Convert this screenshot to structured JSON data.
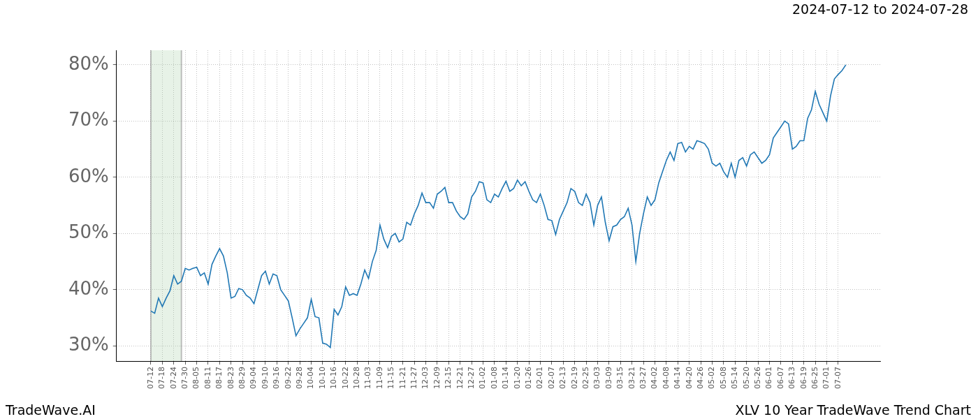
{
  "chart_data": {
    "type": "line",
    "title": "2024-07-12 to 2024-07-28",
    "footer_left": "TradeWave.AI",
    "footer_right": "XLV 10 Year TradeWave Trend Chart",
    "shaded_range": [
      "07-12",
      "07-28"
    ],
    "categories": [
      "07-12",
      null,
      null,
      "07-18",
      null,
      null,
      "07-24",
      null,
      null,
      "07-30",
      null,
      null,
      "08-05",
      null,
      null,
      "08-11",
      null,
      null,
      "08-17",
      null,
      null,
      "08-23",
      null,
      null,
      "08-29",
      null,
      null,
      "09-04",
      null,
      null,
      "09-10",
      null,
      null,
      "09-16",
      null,
      null,
      "09-22",
      null,
      null,
      "09-28",
      null,
      null,
      "10-04",
      null,
      null,
      "10-10",
      null,
      null,
      "10-16",
      null,
      null,
      "10-22",
      null,
      null,
      "10-28",
      null,
      null,
      "11-03",
      null,
      null,
      "11-09",
      null,
      null,
      "11-15",
      null,
      null,
      "11-21",
      null,
      null,
      "11-27",
      null,
      null,
      "12-03",
      null,
      null,
      "12-09",
      null,
      null,
      "12-15",
      null,
      null,
      "12-21",
      null,
      null,
      "12-27",
      null,
      null,
      "01-02",
      null,
      null,
      "01-08",
      null,
      null,
      "01-14",
      null,
      null,
      "01-20",
      null,
      null,
      "01-26",
      null,
      null,
      "02-01",
      null,
      null,
      "02-07",
      null,
      null,
      "02-13",
      null,
      null,
      "02-19",
      null,
      null,
      "02-25",
      null,
      null,
      "03-03",
      null,
      null,
      "03-09",
      null,
      null,
      "03-15",
      null,
      null,
      "03-21",
      null,
      null,
      "03-27",
      null,
      null,
      "04-02",
      null,
      null,
      "04-08",
      null,
      null,
      "04-14",
      null,
      null,
      "04-20",
      null,
      null,
      "04-26",
      null,
      null,
      "05-02",
      null,
      null,
      "05-08",
      null,
      null,
      "05-14",
      null,
      null,
      "05-20",
      null,
      null,
      "05-26",
      null,
      null,
      "06-01",
      null,
      null,
      "06-07",
      null,
      null,
      "06-13",
      null,
      null,
      "06-19",
      null,
      null,
      "06-25",
      null,
      null,
      "07-01",
      null,
      null,
      "07-07",
      null,
      null
    ],
    "values": [
      36.2,
      35.8,
      38.5,
      37,
      38.5,
      39.8,
      42.5,
      41,
      41.5,
      43.8,
      43.5,
      43.8,
      44,
      42.5,
      43,
      41,
      44.5,
      46,
      47.3,
      46,
      43,
      38.5,
      38.8,
      40.2,
      40,
      39,
      38.5,
      37.5,
      40,
      42.5,
      43.3,
      41,
      42.8,
      42.5,
      40,
      39,
      38,
      35,
      31.8,
      33,
      34,
      35,
      38.3,
      35.2,
      35,
      30.5,
      30.3,
      29.7,
      36.5,
      35.5,
      37,
      40.5,
      39,
      39.3,
      39,
      41,
      43.5,
      42,
      45,
      47,
      51.5,
      49,
      47.5,
      49.5,
      50,
      48.5,
      49,
      52,
      51.5,
      53.5,
      55,
      57.2,
      55.5,
      55.5,
      54.5,
      57,
      57.5,
      58.2,
      55.5,
      55.5,
      54,
      53,
      52.5,
      53.5,
      56.5,
      57.5,
      59.2,
      59,
      56,
      55.5,
      57,
      56.5,
      58,
      59.3,
      57.5,
      58,
      59.5,
      58.5,
      59.2,
      57.5,
      56,
      55.5,
      57,
      55,
      52.5,
      52.3,
      49.8,
      52.5,
      54,
      55.5,
      58,
      57.5,
      55.5,
      55,
      57,
      55.5,
      51.5,
      55,
      56.5,
      52,
      48.7,
      51.2,
      51.5,
      52.5,
      53,
      54.5,
      51.5,
      45,
      50,
      53.5,
      56.5,
      55,
      56,
      59,
      61,
      63,
      64.5,
      63,
      66,
      66.2,
      64.5,
      65.5,
      65,
      66.5,
      66.3,
      66,
      65,
      62.5,
      62,
      62.5,
      61,
      60,
      62.5,
      60,
      63,
      63.5,
      62,
      64,
      64.5,
      63.5,
      62.5,
      63,
      64,
      67,
      68,
      69,
      70,
      69.5,
      65,
      65.5,
      66.5,
      66.5,
      70.5,
      72,
      75.3,
      73,
      71.5,
      70,
      74.5,
      77.5,
      78.3,
      79,
      80
    ],
    "color": "#1f77b4",
    "line_style": "solid",
    "ylim": [
      27.3,
      82.6
    ],
    "yticks": [
      {
        "value": 30,
        "label": "30%"
      },
      {
        "value": 40,
        "label": "40%"
      },
      {
        "value": 50,
        "label": "50%"
      },
      {
        "value": 60,
        "label": "60%"
      },
      {
        "value": 70,
        "label": "70%"
      },
      {
        "value": 80,
        "label": "80%"
      }
    ],
    "grid": true
  }
}
